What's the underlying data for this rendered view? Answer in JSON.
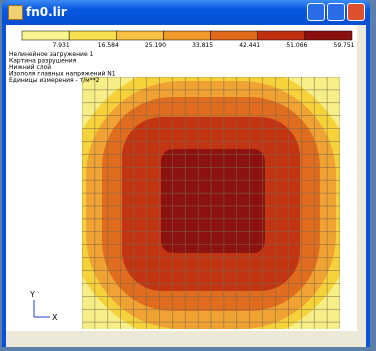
{
  "window": {
    "title": "fn0.lir"
  },
  "legend": {
    "values": [
      "7.931",
      "16.584",
      "25.190",
      "33.815",
      "42.441",
      "51.066",
      "59.751"
    ]
  },
  "info": [
    "Нелинейное загружение 1",
    "Картина разрушения",
    "Нижний слой",
    "Изополя главных напряжений N1",
    "Единицы измерения - т/м**2"
  ],
  "axes": {
    "y": "Y",
    "x": "X"
  }
}
